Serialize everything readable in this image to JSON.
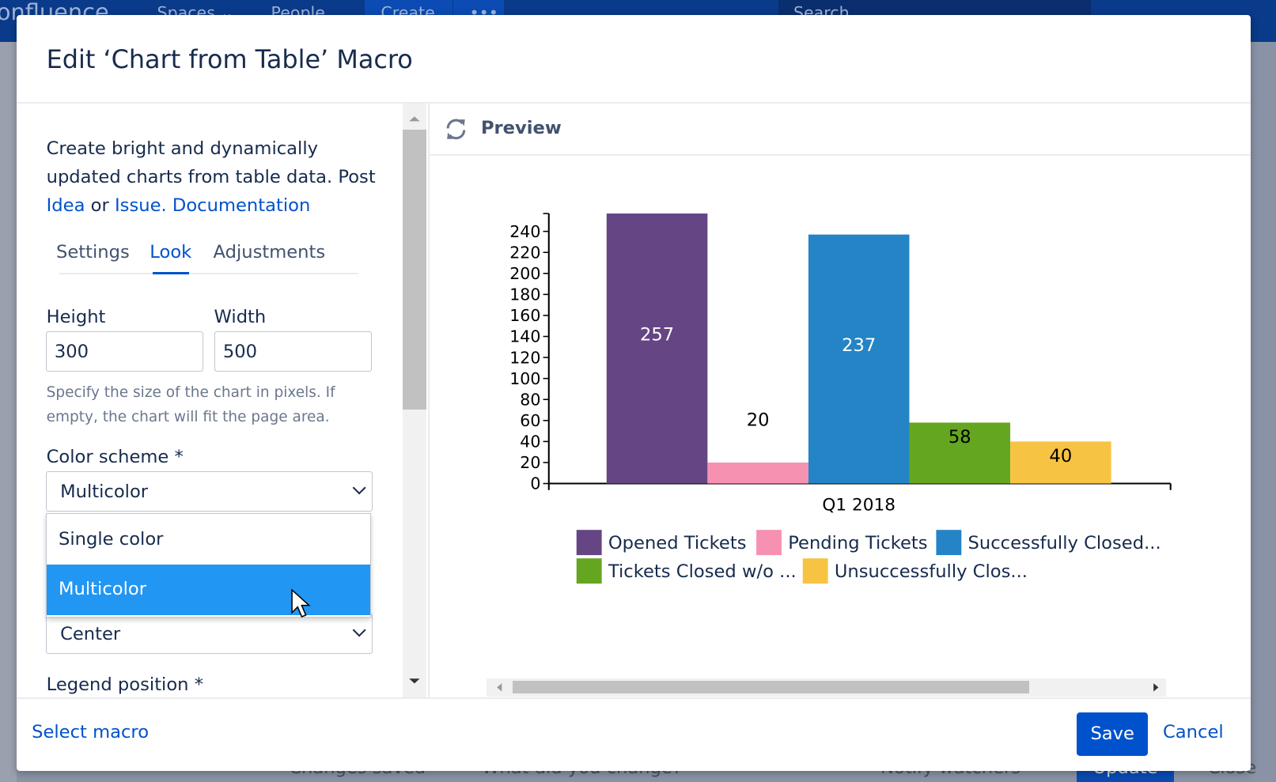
{
  "background": {
    "logo": "onfluence",
    "nav": [
      "Spaces ⌄",
      "People",
      "Create",
      "•••"
    ],
    "search_placeholder": "Search",
    "footer_status": "Changes saved",
    "footer_input": "What did you change?",
    "notify": "Notify watchers",
    "update": "Update",
    "close": "Close"
  },
  "dialog": {
    "title": "Edit ‘Chart from Table’ Macro",
    "description": {
      "text": "Create bright and dynamically updated charts from table data. Post",
      "idea": "Idea",
      "or": "or",
      "issue": "Issue.",
      "documentation": "Documentation"
    },
    "tabs": [
      {
        "label": "Settings"
      },
      {
        "label": "Look",
        "active": true
      },
      {
        "label": "Adjustments"
      }
    ],
    "height": {
      "label": "Height",
      "value": "300"
    },
    "width": {
      "label": "Width",
      "value": "500"
    },
    "size_help": "Specify the size of the chart in pixels. If empty, the chart will fit the page area.",
    "color_scheme": {
      "label": "Color scheme *",
      "value": "Multicolor",
      "options": [
        "Single color",
        "Multicolor"
      ],
      "highlighted": "Multicolor"
    },
    "alignment": {
      "value": "Center"
    },
    "legend_position": {
      "label": "Legend position *"
    },
    "preview": {
      "label": "Preview"
    },
    "footer": {
      "select_macro": "Select macro",
      "save": "Save",
      "cancel": "Cancel"
    }
  },
  "chart_data": {
    "type": "bar",
    "categories": [
      "Q1 2018"
    ],
    "series": [
      {
        "name": "Opened Tickets",
        "values": [
          257
        ],
        "color": "#654583"
      },
      {
        "name": "Pending Tickets",
        "values": [
          20
        ],
        "color": "#f691b2"
      },
      {
        "name": "Successfully Closed...",
        "values": [
          237
        ],
        "color": "#2484c6"
      },
      {
        "name": "Tickets Closed w/o ...",
        "values": [
          58
        ],
        "color": "#65a620"
      },
      {
        "name": "Unsuccessfully Clos...",
        "values": [
          40
        ],
        "color": "#f7c342"
      }
    ],
    "yticks": [
      0,
      20,
      40,
      60,
      80,
      100,
      120,
      140,
      160,
      180,
      200,
      220,
      240
    ],
    "ylim": [
      0,
      257
    ],
    "legend": "bottom"
  }
}
